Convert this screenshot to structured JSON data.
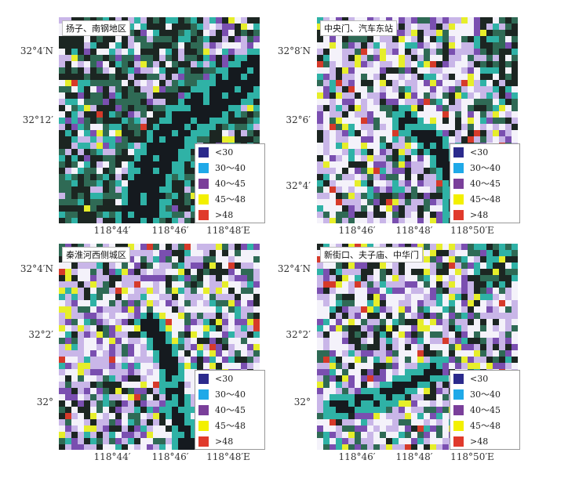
{
  "legend_items": [
    {
      "label": "<30",
      "color": "#2b2a8c"
    },
    {
      "label": "30～40",
      "color": "#1fa9e8"
    },
    {
      "label": "40～45",
      "color": "#7a3f9a"
    },
    {
      "label": "45～48",
      "color": "#f3f000"
    },
    {
      "label": ">48",
      "color": "#e03a2c"
    }
  ],
  "panels": [
    {
      "title": "扬子、南钢地区",
      "y_ticks": [
        "32°4′N",
        "32°12′"
      ],
      "x_ticks": [
        "118°44′",
        "118°46′",
        "118°48′E"
      ]
    },
    {
      "title": "中央门、汽车东站",
      "y_ticks": [
        "32°8′N",
        "32°6′",
        "32°4′"
      ],
      "x_ticks": [
        "118°46′",
        "118°48′",
        "118°50′E"
      ]
    },
    {
      "title": "秦淮河西侧城区",
      "y_ticks": [
        "32°4′N",
        "32°2′",
        "32°"
      ],
      "x_ticks": [
        "118°44′",
        "118°46′",
        "118°48′E"
      ]
    },
    {
      "title": "新街口、夫子庙、中华门",
      "y_ticks": [
        "32°4′N",
        "32°2′",
        "32°"
      ],
      "x_ticks": [
        "118°46′",
        "118°48′",
        "118°50′E"
      ]
    }
  ]
}
